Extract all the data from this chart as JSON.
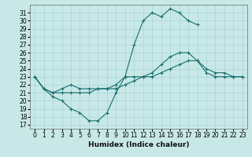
{
  "title": "",
  "xlabel": "Humidex (Indice chaleur)",
  "bg_color": "#c8e8e8",
  "line_color": "#1a6e6e",
  "xlim": [
    -0.5,
    23.5
  ],
  "ylim": [
    16.5,
    32
  ],
  "xticks": [
    0,
    1,
    2,
    3,
    4,
    5,
    6,
    7,
    8,
    9,
    10,
    11,
    12,
    13,
    14,
    15,
    16,
    17,
    18,
    19,
    20,
    21,
    22,
    23
  ],
  "yticks": [
    17,
    18,
    19,
    20,
    21,
    22,
    23,
    24,
    25,
    26,
    27,
    28,
    29,
    30,
    31
  ],
  "lines": [
    {
      "x": [
        0,
        1,
        2,
        3,
        4,
        5,
        6,
        7,
        8,
        9,
        10,
        11,
        12,
        13,
        14,
        15,
        16,
        17,
        18
      ],
      "y": [
        23,
        21.5,
        20.5,
        20,
        19,
        18.5,
        17.5,
        17.5,
        18.5,
        21,
        23,
        27,
        30,
        31,
        30.5,
        31.5,
        31,
        30,
        29.5
      ]
    },
    {
      "x": [
        0,
        1,
        2,
        3,
        4,
        5,
        6,
        7,
        8,
        9,
        10,
        11,
        12,
        13,
        14,
        15,
        16,
        17,
        18,
        19,
        20,
        21,
        22,
        23
      ],
      "y": [
        23,
        21.5,
        21,
        21.5,
        22,
        21.5,
        21.5,
        21.5,
        21.5,
        22,
        23,
        23,
        23,
        23.5,
        24.5,
        25.5,
        26,
        26,
        25,
        24,
        23.5,
        23.5,
        23,
        23
      ]
    },
    {
      "x": [
        0,
        1,
        2,
        3,
        4,
        5,
        6,
        7,
        8,
        9,
        10,
        11,
        12,
        13,
        14,
        15,
        16,
        17,
        18,
        19,
        20,
        21,
        22,
        23
      ],
      "y": [
        23,
        21.5,
        21,
        21,
        21,
        21,
        21,
        21.5,
        21.5,
        21.5,
        22,
        22.5,
        23,
        23,
        23.5,
        24,
        24.5,
        25,
        25,
        23.5,
        23,
        23,
        23,
        23
      ]
    }
  ],
  "grid_color": "#a8d4d4",
  "tick_fontsize": 5.5,
  "xlabel_fontsize": 6.5
}
